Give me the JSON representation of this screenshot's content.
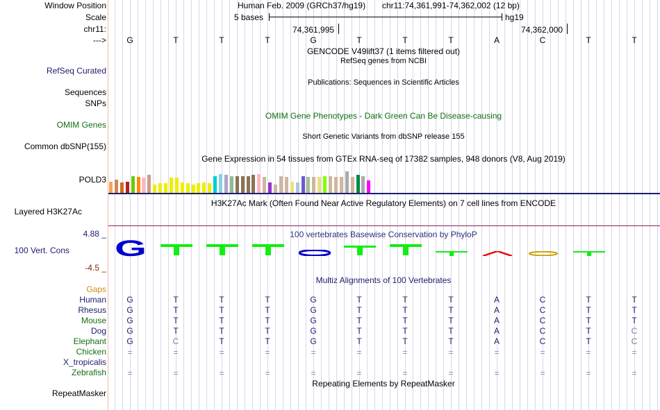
{
  "left_labels": {
    "window_position": "Window Position",
    "scale": "Scale",
    "chrom": "chr11:",
    "strand": "--->",
    "refseq": "RefSeq Curated",
    "sequences": "Sequences",
    "snps": "SNPs",
    "omim": "OMIM Genes",
    "dbsnp": "Common dbSNP(155)",
    "gene": "POLD3",
    "h3k27ac": "Layered H3K27Ac",
    "cons_max": "4.88 _",
    "cons": "100 Vert. Cons",
    "cons_min": "-4.5 _",
    "gaps": "Gaps",
    "species": [
      "Human",
      "Rhesus",
      "Mouse",
      "Dog",
      "Elephant",
      "Chicken",
      "X_tropicalis",
      "Zebrafish"
    ],
    "repeatmasker": "RepeatMasker"
  },
  "header": {
    "assembly": "Human Feb. 2009 (GRCh37/hg19)",
    "position": "chr11:74,361,991-74,362,002 (12 bp)",
    "scale_left": "5 bases",
    "scale_right": "hg19",
    "coord1": "74,361,995",
    "coord2": "74,362,000"
  },
  "sequence": [
    "G",
    "T",
    "T",
    "T",
    "G",
    "T",
    "T",
    "T",
    "A",
    "C",
    "T",
    "T"
  ],
  "tracks": {
    "gencode": "GENCODE V49lift37 (1 items filtered out)",
    "refseq": "RefSeq genes from NCBI",
    "publications": "Publications: Sequences in Scientific Articles",
    "omim": "OMIM Gene Phenotypes - Dark Green Can Be Disease-causing",
    "dbsnp": "Short Genetic Variants from dbSNP release 155",
    "gtex": "Gene Expression in 54 tissues from GTEx RNA-seq of 17382 samples, 948 donors (V8, Aug 2019)",
    "h3k27ac": "H3K27Ac Mark (Often Found Near Active Regulatory Elements) on 7 cell lines from ENCODE",
    "phylop": "100 vertebrates Basewise Conservation by PhyloP",
    "multiz": "Multiz Alignments of 100 Vertebrates",
    "repeatmasker": "Repeating Elements by RepeatMasker"
  },
  "alignment": {
    "Human": [
      "G",
      "T",
      "T",
      "T",
      "G",
      "T",
      "T",
      "T",
      "A",
      "C",
      "T",
      "T"
    ],
    "Rhesus": [
      "G",
      "T",
      "T",
      "T",
      "G",
      "T",
      "T",
      "T",
      "A",
      "C",
      "T",
      "T"
    ],
    "Mouse": [
      "G",
      "T",
      "T",
      "T",
      "G",
      "T",
      "T",
      "T",
      "A",
      "C",
      "T",
      "T"
    ],
    "Dog": [
      "G",
      "T",
      "T",
      "T",
      "G",
      "T",
      "T",
      "T",
      "A",
      "C",
      "T",
      "C"
    ],
    "Elephant": [
      "G",
      "C",
      "T",
      "T",
      "G",
      "T",
      "T",
      "T",
      "A",
      "C",
      "T",
      "C"
    ],
    "Chicken": [
      "=",
      "=",
      "=",
      "=",
      "=",
      "=",
      "=",
      "=",
      "=",
      "=",
      "=",
      "="
    ],
    "Zebrafish": [
      "=",
      "=",
      "=",
      "=",
      "=",
      "=",
      "=",
      "=",
      "=",
      "=",
      "=",
      "="
    ]
  },
  "gtex_colors": [
    "#f4a460",
    "#cc8a5a",
    "#d2691e",
    "#b22222",
    "#66cd00",
    "#ff8c00",
    "#ffb6c1",
    "#cd9b8a",
    "#eeee00",
    "#eeee00",
    "#eeee00",
    "#eeee00",
    "#eeee00",
    "#eeee00",
    "#eeee00",
    "#eeee00",
    "#eeee00",
    "#eeee00",
    "#eeee00",
    "#00ced1",
    "#87ceeb",
    "#b0a4c8",
    "#8fbc8f",
    "#8b7355",
    "#8b7355",
    "#8b7355",
    "#8b7355",
    "#ffb6c1",
    "#cdb79e",
    "#9a32cd",
    "#cdb79e",
    "#cdb79e",
    "#cdb79e",
    "#eedd82",
    "#b0c4de",
    "#6a5acd",
    "#a6c090",
    "#cdb79e",
    "#eedd82",
    "#7fff00",
    "#cdb79e",
    "#cdb79e",
    "#cdb79e",
    "#aaaaaa",
    "#cdb79e",
    "#008b45",
    "#aaaaaa",
    "#ff00ff"
  ],
  "gtex_values": [
    0.6,
    0.7,
    0.55,
    0.6,
    0.9,
    0.85,
    0.8,
    0.95,
    0.45,
    0.5,
    0.5,
    0.8,
    0.8,
    0.55,
    0.5,
    0.45,
    0.5,
    0.55,
    0.5,
    0.9,
    1.0,
    0.95,
    0.9,
    0.9,
    0.9,
    0.9,
    0.95,
    1.0,
    0.85,
    0.55,
    0.45,
    0.9,
    0.85,
    0.6,
    0.55,
    0.9,
    0.85,
    0.85,
    0.85,
    0.9,
    0.9,
    0.85,
    0.85,
    1.15,
    0.85,
    0.95,
    0.9,
    0.65
  ]
}
